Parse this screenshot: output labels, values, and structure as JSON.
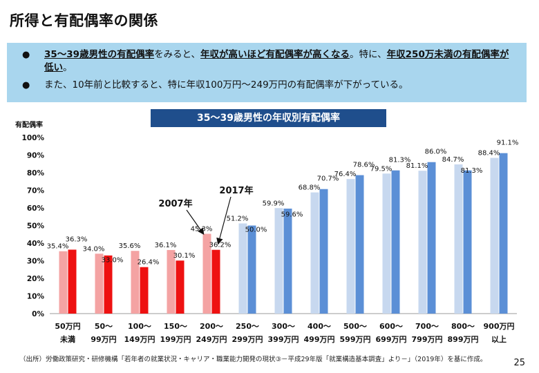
{
  "page": {
    "title": "所得と有配偶率の関係",
    "page_number": "25",
    "source": "（出所）労働政策研究・研修機構「若年者の就業状況・キャリア・職業能力開発の現状③－平成29年版「就業構造基本調査」より－」（2019年）を基に作成。"
  },
  "summary": {
    "bullet1": {
      "part1": "35～39歳男性の有配偶率",
      "part2": "をみると、",
      "part3": "年収が高いほど有配偶率が高くなる",
      "part4": "。特に、",
      "part5": "年収250万未満の有配偶率が低い",
      "part6": "。"
    },
    "bullet2": "また、10年前と比較すると、特に年収100万円～249万円の有配偶率が下がっている。"
  },
  "chart_data": {
    "type": "bar",
    "title": "35～39歳男性の年収別有配偶率",
    "ylabel": "有配偶率",
    "ylim": [
      0,
      100
    ],
    "yticks": [
      "0%",
      "10%",
      "20%",
      "30%",
      "40%",
      "50%",
      "60%",
      "70%",
      "80%",
      "90%",
      "100%"
    ],
    "categories": [
      [
        "50万円",
        "未満"
      ],
      [
        "50～",
        "99万円"
      ],
      [
        "100～",
        "149万円"
      ],
      [
        "150～",
        "199万円"
      ],
      [
        "200～",
        "249万円"
      ],
      [
        "250～",
        "299万円"
      ],
      [
        "300～",
        "399万円"
      ],
      [
        "400～",
        "499万円"
      ],
      [
        "500～",
        "599万円"
      ],
      [
        "600～",
        "699万円"
      ],
      [
        "700～",
        "799万円"
      ],
      [
        "800～",
        "899万円"
      ],
      [
        "900万円",
        "以上"
      ]
    ],
    "series": [
      {
        "name": "2007年",
        "values": [
          35.4,
          34.0,
          35.6,
          36.1,
          45.3,
          51.2,
          59.9,
          68.8,
          76.4,
          79.5,
          81.1,
          84.7,
          88.4
        ]
      },
      {
        "name": "2017年",
        "values": [
          36.3,
          33.0,
          26.4,
          30.1,
          36.2,
          50.0,
          59.6,
          70.7,
          78.6,
          81.3,
          86.0,
          81.3,
          91.1
        ]
      }
    ],
    "colors": {
      "low_2007": "#f4a3a3",
      "low_2017": "#ee1111",
      "high_2007": "#c7d8ef",
      "high_2017": "#5b8fd6"
    },
    "highlight_boundary_index": 5
  }
}
